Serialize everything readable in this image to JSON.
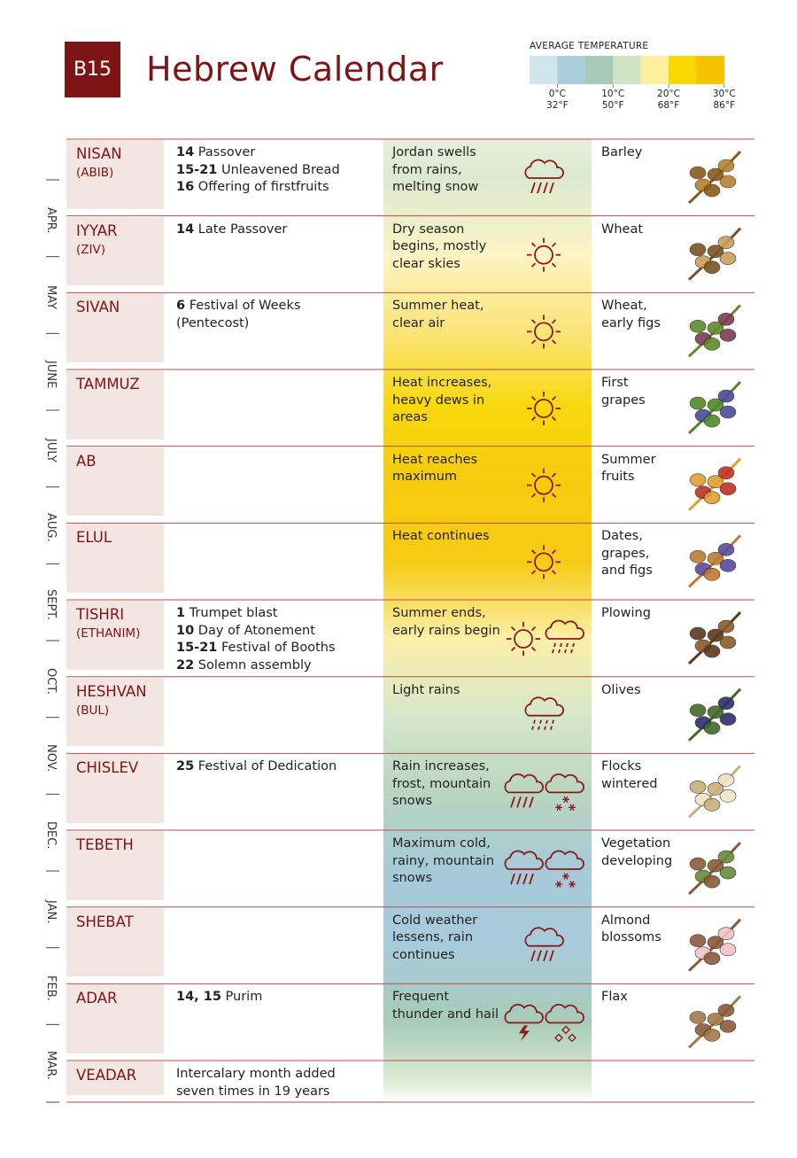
{
  "header": {
    "badge": "B15",
    "title": "Hebrew Calendar"
  },
  "legend": {
    "title": "AVERAGE TEMPERATURE",
    "colors": [
      "#cfe6ee",
      "#a9cfdc",
      "#a7c9b7",
      "#d0e3c3",
      "#fdef9e",
      "#f8d800",
      "#f7c200"
    ],
    "labels": [
      {
        "celsius": "0°C",
        "fahrenheit": "32°F"
      },
      {
        "celsius": "10°C",
        "fahrenheit": "50°F"
      },
      {
        "celsius": "20°C",
        "fahrenheit": "68°F"
      },
      {
        "celsius": "30°C",
        "fahrenheit": "86°F"
      }
    ]
  },
  "gregorian_months": [
    "APR.",
    "MAY",
    "JUNE",
    "JULY",
    "AUG.",
    "SEPT.",
    "OCT.",
    "NOV.",
    "DEC.",
    "JAN.",
    "FEB.",
    "MAR."
  ],
  "rows": [
    {
      "month": "NISAN",
      "alt_name": "(ABIB)",
      "events": [
        {
          "day": "14",
          "text": "Passover"
        },
        {
          "day": "15-21",
          "text": "Unleavened Bread"
        },
        {
          "day": "16",
          "text": "Offering of firstfruits"
        }
      ],
      "weather": "Jordan swells from rains, melting snow",
      "crops": "Barley"
    },
    {
      "month": "IYYAR",
      "alt_name": "(ZIV)",
      "events": [
        {
          "day": "14",
          "text": "Late Passover"
        }
      ],
      "weather": "Dry season begins, mostly clear skies",
      "crops": "Wheat"
    },
    {
      "month": "SIVAN",
      "events": [
        {
          "day": "6",
          "text": "Festival of Weeks (Pentecost)"
        }
      ],
      "weather": "Summer heat, clear air",
      "crops": "Wheat, early figs"
    },
    {
      "month": "TAMMUZ",
      "events": [],
      "weather": "Heat increases, heavy dews in areas",
      "crops": "First grapes"
    },
    {
      "month": "AB",
      "events": [],
      "weather": "Heat reaches maximum",
      "crops": "Summer fruits"
    },
    {
      "month": "ELUL",
      "events": [],
      "weather": "Heat continues",
      "crops": "Dates, grapes, and figs"
    },
    {
      "month": "TISHRI",
      "alt_name": "(ETHANIM)",
      "events": [
        {
          "day": "1",
          "text": "Trumpet blast"
        },
        {
          "day": "10",
          "text": "Day of Atonement"
        },
        {
          "day": "15-21",
          "text": "Festival of Booths"
        },
        {
          "day": "22",
          "text": "Solemn assembly"
        }
      ],
      "weather": "Summer ends, early rains begin",
      "crops": "Plowing"
    },
    {
      "month": "HESHVAN",
      "alt_name": "(BUL)",
      "events": [],
      "weather": "Light rains",
      "crops": "Olives"
    },
    {
      "month": "CHISLEV",
      "events": [
        {
          "day": "25",
          "text": "Festival of Dedication"
        }
      ],
      "weather": "Rain increases, frost, mountain snows",
      "crops": "Flocks wintered"
    },
    {
      "month": "TEBETH",
      "events": [],
      "weather": "Maximum cold, rainy, mountain snows",
      "crops": "Vegetation developing"
    },
    {
      "month": "SHEBAT",
      "events": [],
      "weather": "Cold weather lessens, rain continues",
      "crops": "Almond blossoms"
    },
    {
      "month": "ADAR",
      "events": [
        {
          "day": "14, 15",
          "text": "Purim"
        }
      ],
      "weather": "Frequent thunder and hail",
      "crops": "Flax"
    },
    {
      "month": "VEADAR",
      "note": "Intercalary month added seven times in 19 years"
    }
  ]
}
